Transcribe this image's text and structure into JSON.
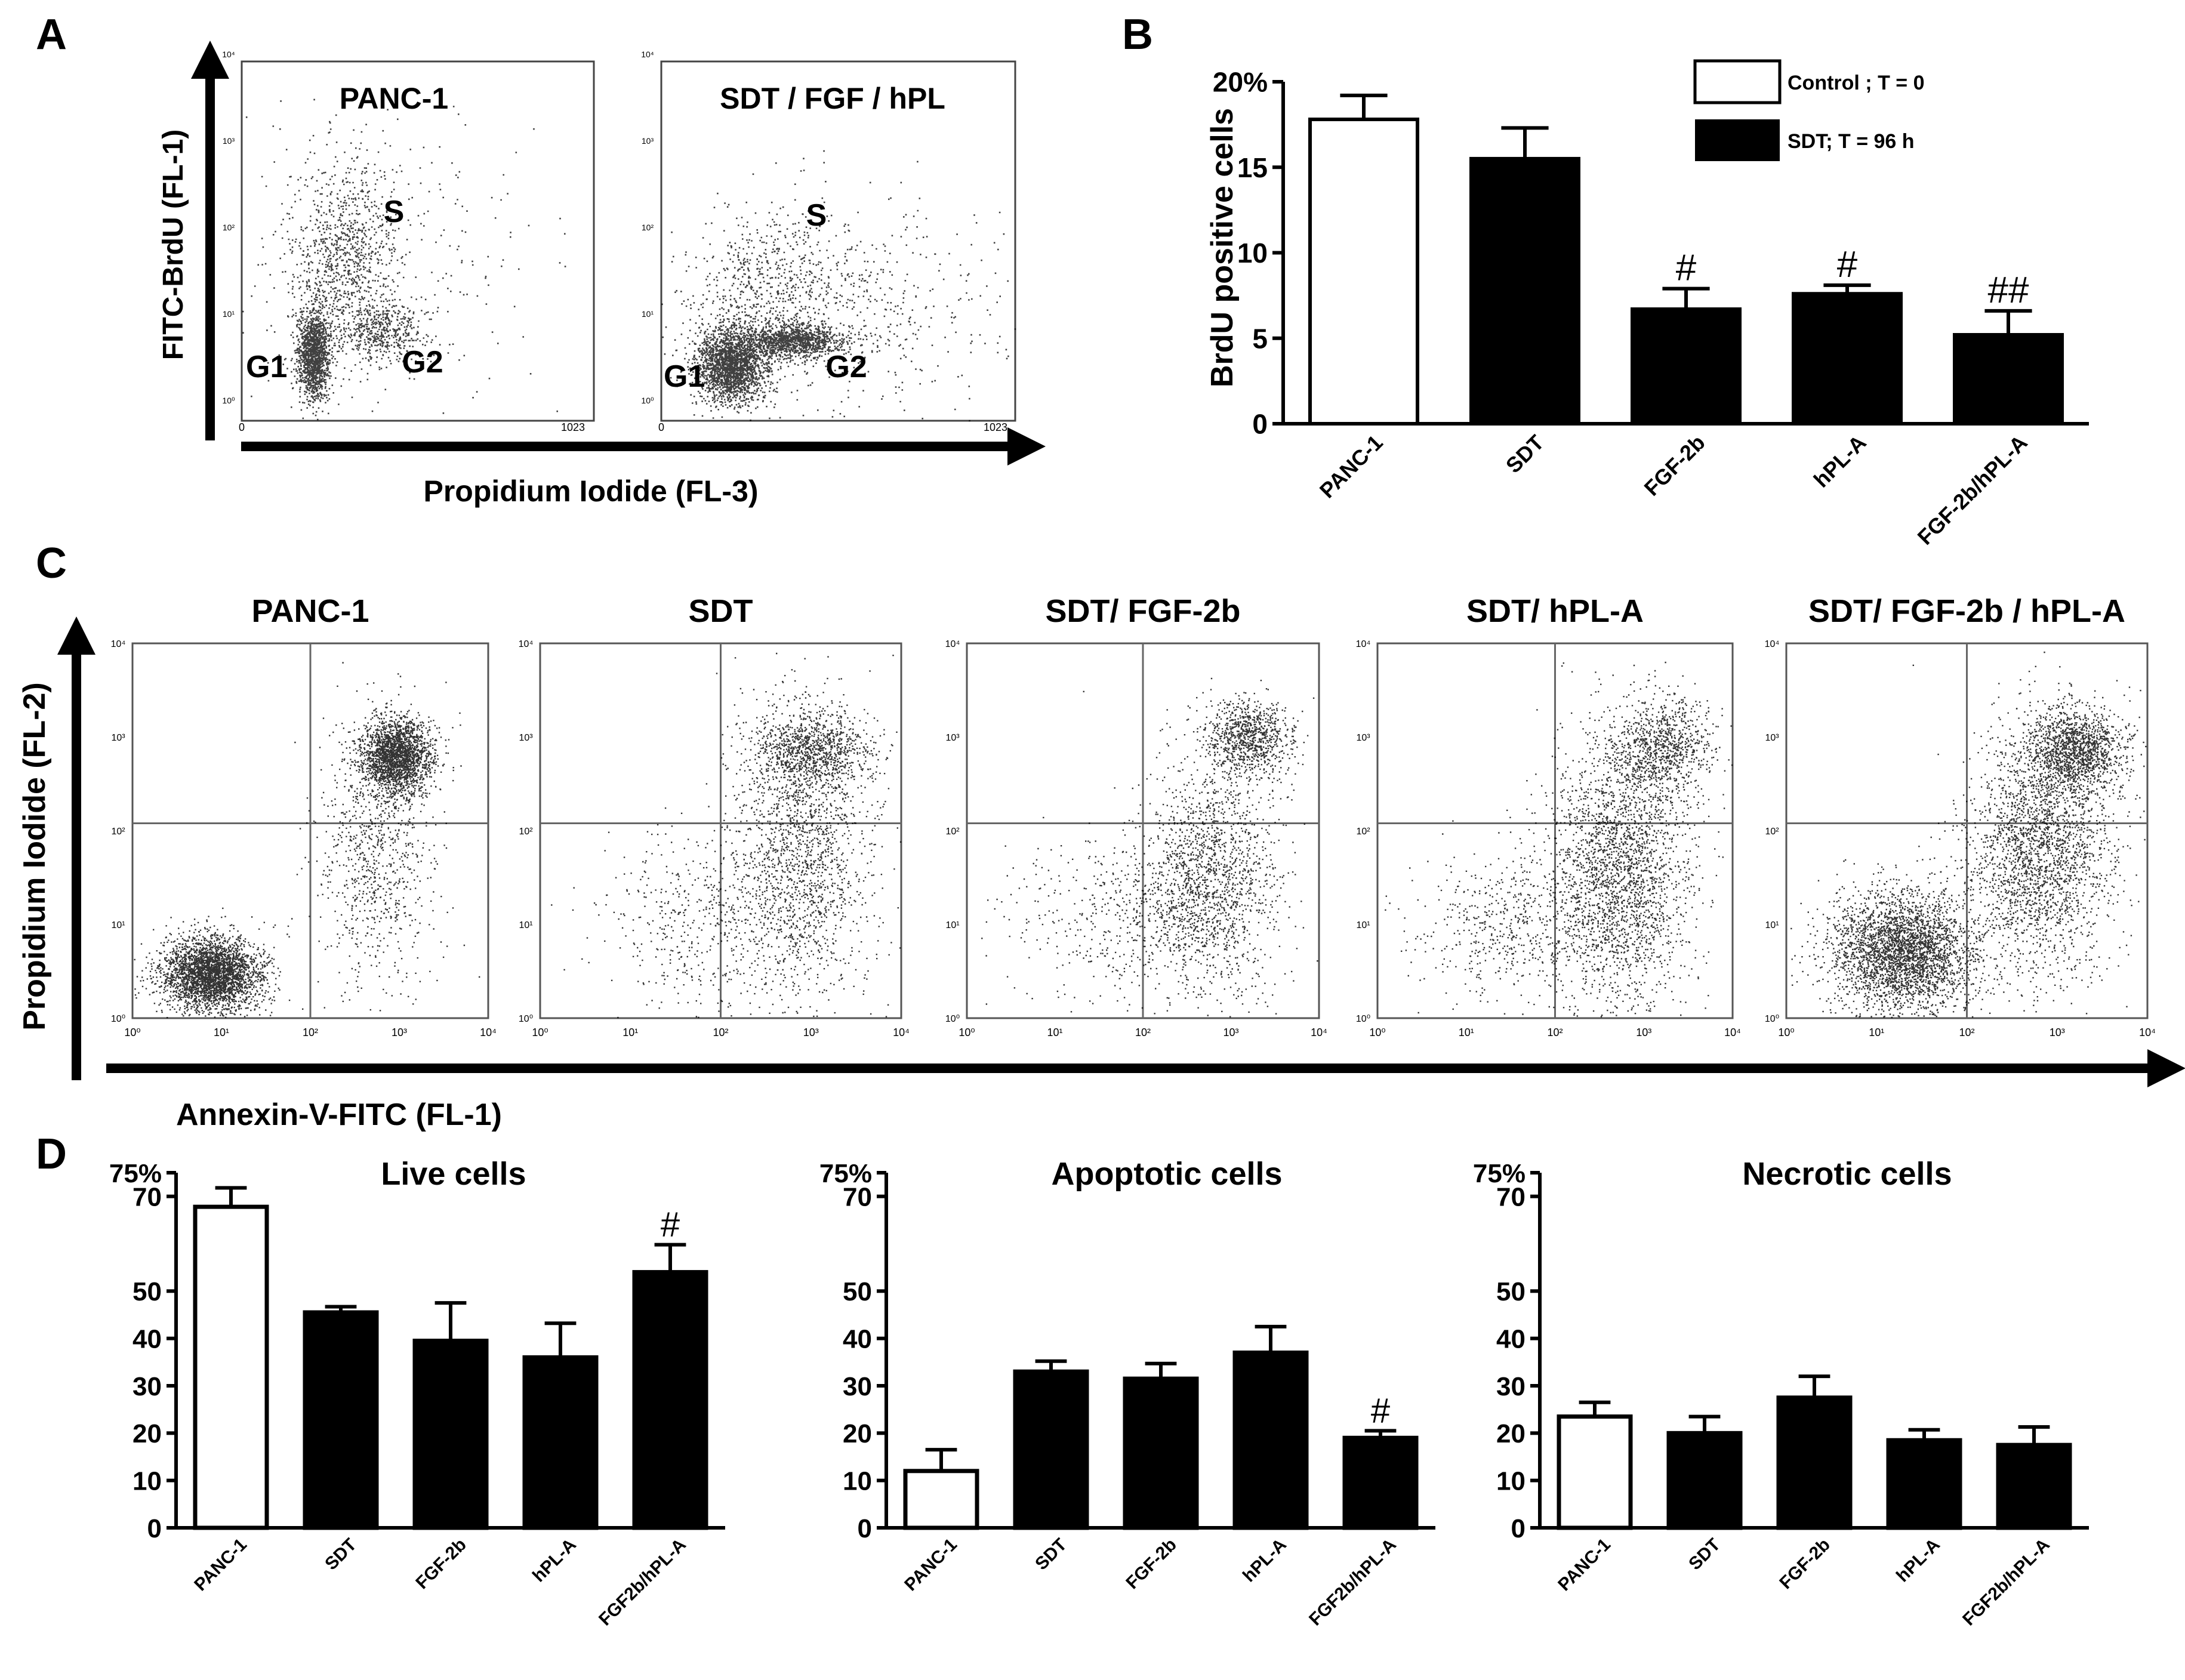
{
  "panels": {
    "a": {
      "letter": "A"
    },
    "b": {
      "letter": "B"
    },
    "c": {
      "letter": "C"
    },
    "d": {
      "letter": "D"
    }
  },
  "panel_a": {
    "y_axis_label": "FITC-BrdU (FL-1)",
    "x_axis_label": "Propidium Iodide (FL-3)",
    "x_tick_labels": [
      "0",
      "1023"
    ],
    "y_tick_labels": [
      "10⁰",
      "10¹",
      "10²",
      "10³",
      "10⁴"
    ],
    "plots": [
      {
        "title": "PANC-1",
        "gates": [
          "G1",
          "S",
          "G2"
        ]
      },
      {
        "title": "SDT / FGF / hPL",
        "gates": [
          "G1",
          "S",
          "G2"
        ]
      }
    ]
  },
  "panel_c": {
    "y_axis_label": "Propidium Iodide (FL-2)",
    "x_axis_label": "Annexin-V-FITC (FL-1)",
    "log_tick_labels": [
      "10⁰",
      "10¹",
      "10²",
      "10³",
      "10⁴"
    ],
    "plots": [
      {
        "title": "PANC-1"
      },
      {
        "title": "SDT"
      },
      {
        "title": "SDT/ FGF-2b"
      },
      {
        "title": "SDT/ hPL-A"
      },
      {
        "title": "SDT/ FGF-2b / hPL-A"
      }
    ]
  },
  "chart_data": [
    {
      "id": "B",
      "type": "bar",
      "title": "",
      "xlabel": "",
      "ylabel": "BrdU positive cells",
      "categories": [
        "PANC-1",
        "SDT",
        "FGF-2b",
        "hPL-A",
        "FGF-2b/hPL-A"
      ],
      "values": [
        17.8,
        15.5,
        6.7,
        7.6,
        5.2
      ],
      "errors": [
        1.4,
        1.8,
        1.2,
        0.5,
        1.4
      ],
      "fills": [
        "white",
        "black",
        "black",
        "black",
        "black"
      ],
      "annotations": [
        "",
        "",
        "#",
        "#",
        "##"
      ],
      "ylim": [
        0,
        20
      ],
      "yticks": [
        0,
        5,
        10,
        15,
        20
      ],
      "ytick_labels": [
        "0",
        "5",
        "10",
        "15",
        "20%"
      ],
      "legend": [
        {
          "label": "Control ; T = 0",
          "fill": "white"
        },
        {
          "label": "SDT; T = 96 h",
          "fill": "black"
        }
      ]
    },
    {
      "id": "D-live",
      "type": "bar",
      "title": "Live cells",
      "categories": [
        "PANC-1",
        "SDT",
        "FGF-2b",
        "hPL-A",
        "FGF2b/hPL-A"
      ],
      "values": [
        67.8,
        45.5,
        39.5,
        36.0,
        54.0
      ],
      "errors": [
        4.0,
        1.2,
        8.0,
        7.2,
        5.8
      ],
      "fills": [
        "white",
        "black",
        "black",
        "black",
        "black"
      ],
      "annotations": [
        "",
        "",
        "",
        "",
        "#"
      ],
      "ylim": [
        0,
        75
      ],
      "yticks": [
        0,
        10,
        20,
        30,
        40,
        50,
        70,
        75
      ],
      "ytick_labels": [
        "0",
        "10",
        "20",
        "30",
        "40",
        "50",
        "70",
        "75%"
      ]
    },
    {
      "id": "D-apoptotic",
      "type": "bar",
      "title": "Apoptotic cells",
      "categories": [
        "PANC-1",
        "SDT",
        "FGF-2b",
        "hPL-A",
        "FGF2b/hPL-A"
      ],
      "values": [
        12.0,
        33.0,
        31.5,
        37.0,
        19.0
      ],
      "errors": [
        4.5,
        2.2,
        3.2,
        5.5,
        1.5
      ],
      "fills": [
        "white",
        "black",
        "black",
        "black",
        "black"
      ],
      "annotations": [
        "",
        "",
        "",
        "",
        "#"
      ],
      "ylim": [
        0,
        75
      ],
      "yticks": [
        0,
        10,
        20,
        30,
        40,
        50,
        70,
        75
      ],
      "ytick_labels": [
        "0",
        "10",
        "20",
        "30",
        "40",
        "50",
        "70",
        "75%"
      ]
    },
    {
      "id": "D-necrotic",
      "type": "bar",
      "title": "Necrotic cells",
      "categories": [
        "PANC-1",
        "SDT",
        "FGF-2b",
        "hPL-A",
        "FGF2b/hPL-A"
      ],
      "values": [
        23.5,
        20.0,
        27.5,
        18.5,
        17.5
      ],
      "errors": [
        3.0,
        3.5,
        4.5,
        2.2,
        3.8
      ],
      "fills": [
        "white",
        "black",
        "black",
        "black",
        "black"
      ],
      "annotations": [
        "",
        "",
        "",
        "",
        ""
      ],
      "ylim": [
        0,
        75
      ],
      "yticks": [
        0,
        10,
        20,
        30,
        40,
        50,
        70,
        75
      ],
      "ytick_labels": [
        "0",
        "10",
        "20",
        "30",
        "40",
        "50",
        "70",
        "75%"
      ]
    }
  ]
}
